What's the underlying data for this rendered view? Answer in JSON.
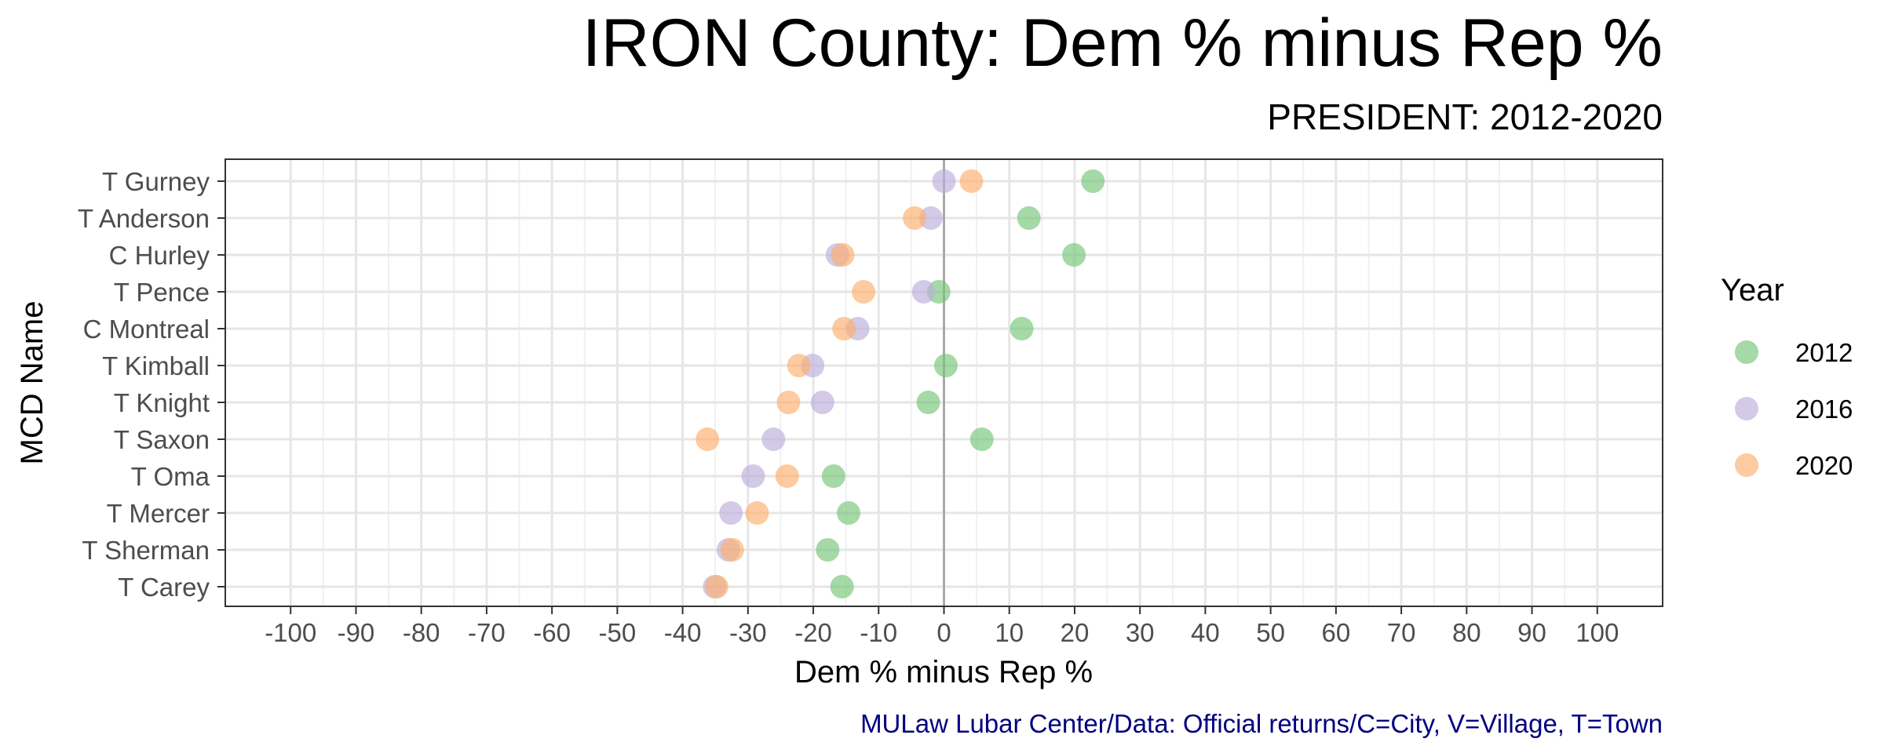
{
  "chart_data": {
    "type": "scatter",
    "title": "IRON County: Dem % minus Rep %",
    "subtitle": "PRESIDENT: 2012-2020",
    "xlabel": "Dem % minus Rep %",
    "ylabel": "MCD Name",
    "caption": "MULaw Lubar Center/Data: Official returns/C=City, V=Village, T=Town",
    "xlim": [
      -110,
      110
    ],
    "xticks": [
      -100,
      -90,
      -80,
      -70,
      -60,
      -50,
      -40,
      -30,
      -20,
      -10,
      0,
      10,
      20,
      30,
      40,
      50,
      60,
      70,
      80,
      90,
      100
    ],
    "categories": [
      "T Gurney",
      "T Anderson",
      "C Hurley",
      "T Pence",
      "C Montreal",
      "T Kimball",
      "T Knight",
      "T Saxon",
      "T Oma",
      "T Mercer",
      "T Sherman",
      "T Carey"
    ],
    "legend_title": "Year",
    "legend_position": "right",
    "grid": true,
    "reference_line_x": 0,
    "series": [
      {
        "name": "2012",
        "color": "#74c476",
        "values": [
          22.8,
          13.0,
          19.9,
          -0.8,
          11.9,
          0.3,
          -2.4,
          5.8,
          -16.9,
          -14.6,
          -17.8,
          -15.6
        ]
      },
      {
        "name": "2016",
        "color": "#bcaedb",
        "values": [
          0.0,
          -2.0,
          -16.3,
          -3.1,
          -13.2,
          -20.1,
          -18.6,
          -26.1,
          -29.2,
          -32.6,
          -33.0,
          -35.1
        ]
      },
      {
        "name": "2020",
        "color": "#fdae6b",
        "values": [
          4.2,
          -4.5,
          -15.5,
          -12.3,
          -15.3,
          -22.2,
          -23.8,
          -36.2,
          -24.0,
          -28.6,
          -32.4,
          -34.8
        ]
      }
    ]
  }
}
